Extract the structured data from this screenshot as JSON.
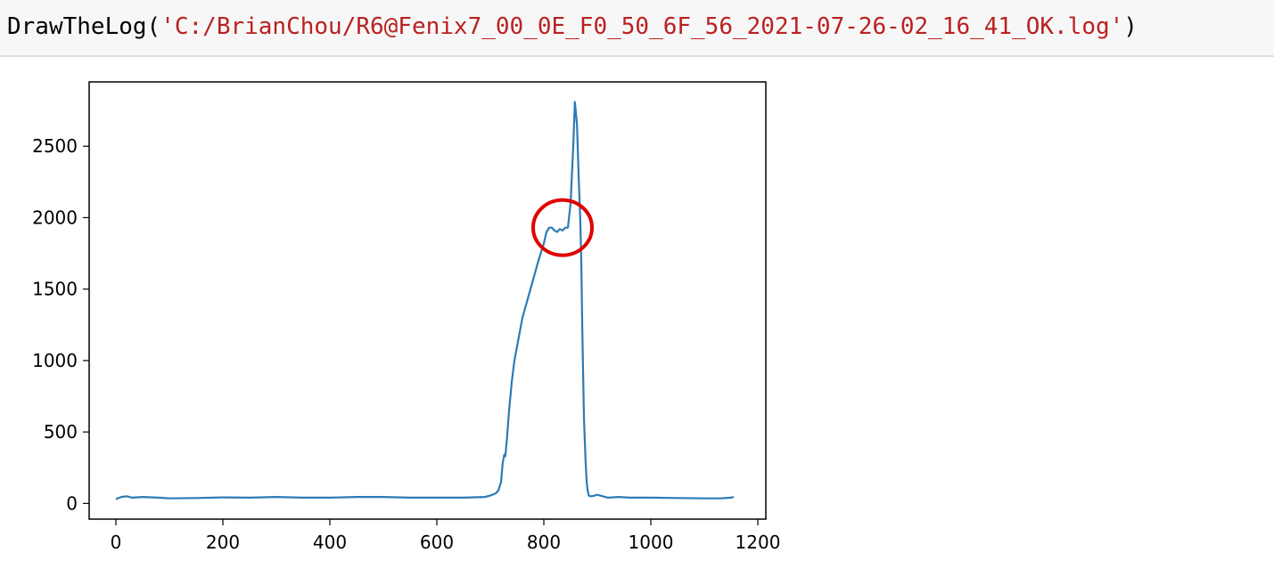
{
  "code_cell": {
    "function_name": "DrawTheLog",
    "open_paren": "(",
    "argument": "'C:/BrianChou/R6@Fenix7_00_0E_F0_50_6F_56_2021-07-26-02_16_41_OK.log'",
    "close_paren": ")"
  },
  "colors": {
    "line": "#2c7bb6",
    "highlight_circle": "#e00000",
    "string_literal": "#ba2121"
  },
  "chart_data": {
    "type": "line",
    "title": "",
    "xlabel": "",
    "ylabel": "",
    "xlim": [
      -50,
      1215
    ],
    "ylim": [
      -110,
      2950
    ],
    "xticks": [
      0,
      200,
      400,
      600,
      800,
      1000,
      1200
    ],
    "yticks": [
      0,
      500,
      1000,
      1500,
      2000,
      2500
    ],
    "grid": false,
    "legend": "none",
    "annotation": "red circle highlighting plateau near x≈835, y≈1930",
    "annotation_center": [
      835,
      1930
    ],
    "series": [
      {
        "x": [
          0,
          10,
          20,
          30,
          50,
          80,
          100,
          150,
          200,
          250,
          300,
          350,
          400,
          450,
          500,
          550,
          600,
          650,
          690,
          700,
          710,
          715,
          720,
          723,
          726,
          728,
          731,
          735,
          740,
          745,
          750,
          760,
          775,
          790,
          800,
          805,
          810,
          815,
          820,
          825,
          830,
          835,
          840,
          845,
          850,
          855,
          858,
          862,
          865,
          868,
          870,
          872,
          875,
          878,
          880,
          882,
          884,
          887,
          890,
          900,
          910,
          920,
          940,
          960,
          1000,
          1050,
          1100,
          1130,
          1150,
          1155
        ],
        "y": [
          30,
          45,
          50,
          40,
          45,
          40,
          35,
          38,
          42,
          40,
          45,
          40,
          40,
          45,
          45,
          40,
          40,
          40,
          45,
          55,
          70,
          90,
          150,
          280,
          340,
          330,
          450,
          650,
          850,
          1000,
          1100,
          1300,
          1500,
          1700,
          1820,
          1900,
          1930,
          1930,
          1910,
          1900,
          1920,
          1910,
          1930,
          1930,
          2100,
          2500,
          2810,
          2650,
          2300,
          2000,
          1700,
          1200,
          600,
          300,
          150,
          90,
          55,
          50,
          50,
          60,
          50,
          40,
          45,
          40,
          40,
          38,
          35,
          35,
          40,
          45
        ]
      }
    ]
  }
}
